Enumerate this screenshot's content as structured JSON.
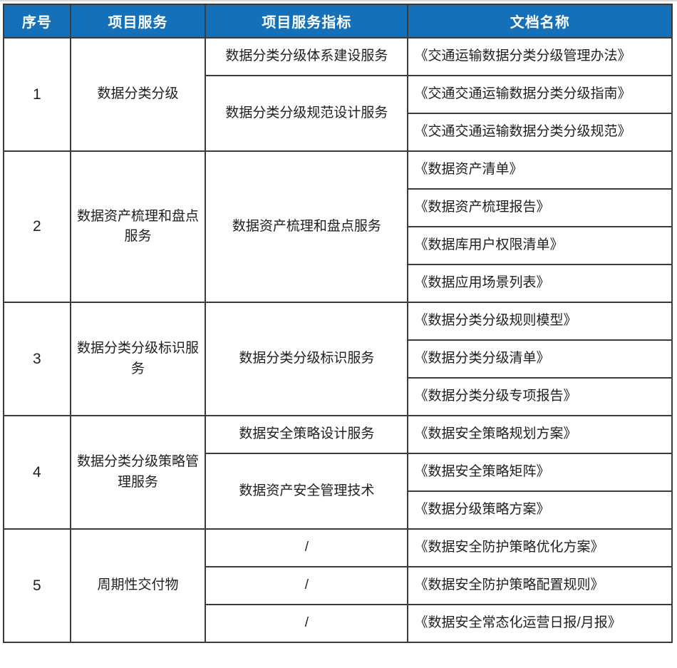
{
  "colors": {
    "header_bg": "#1470b8",
    "header_text": "#ffffff",
    "border": "#3b3b3b",
    "body_text": "#1f1f1f",
    "background": "#ffffff"
  },
  "table": {
    "columns": [
      "序号",
      "项目服务",
      "项目服务指标",
      "文档名称"
    ],
    "groups": [
      {
        "no": "1",
        "service": "数据分类分级",
        "indicators": [
          "数据分类分级体系建设服务",
          "数据分类分级规范设计服务"
        ],
        "documents": [
          "《交通运输数据分类分级管理办法》",
          "《交通交通运输数据分类分级指南》",
          "《交通交通运输数据分类分级规范》"
        ]
      },
      {
        "no": "2",
        "service": "数据资产梳理和盘点服务",
        "indicators": [
          "数据资产梳理和盘点服务"
        ],
        "documents": [
          "《数据资产清单》",
          "《数据资产梳理报告》",
          "《数据库用户权限清单》",
          "《数据应用场景列表》"
        ]
      },
      {
        "no": "3",
        "service": "数据分类分级标识服务",
        "indicators": [
          "数据分类分级标识服务"
        ],
        "documents": [
          "《数据分类分级规则模型》",
          "《数据分类分级清单》",
          "《数据分类分级专项报告》"
        ]
      },
      {
        "no": "4",
        "service": "数据分类分级策略管理服务",
        "indicators": [
          "数据安全策略设计服务",
          "数据资产安全管理技术"
        ],
        "documents": [
          "《数据安全策略规划方案》",
          "《数据安全策略矩阵》",
          "《数据分级策略方案》"
        ]
      },
      {
        "no": "5",
        "service": "周期性交付物",
        "indicators": [
          "/",
          "/",
          "/"
        ],
        "documents": [
          "《数据安全防护策略优化方案》",
          "《数据安全防护策略配置规则》",
          "《数据安全常态化运营日报/月报》"
        ]
      }
    ]
  }
}
